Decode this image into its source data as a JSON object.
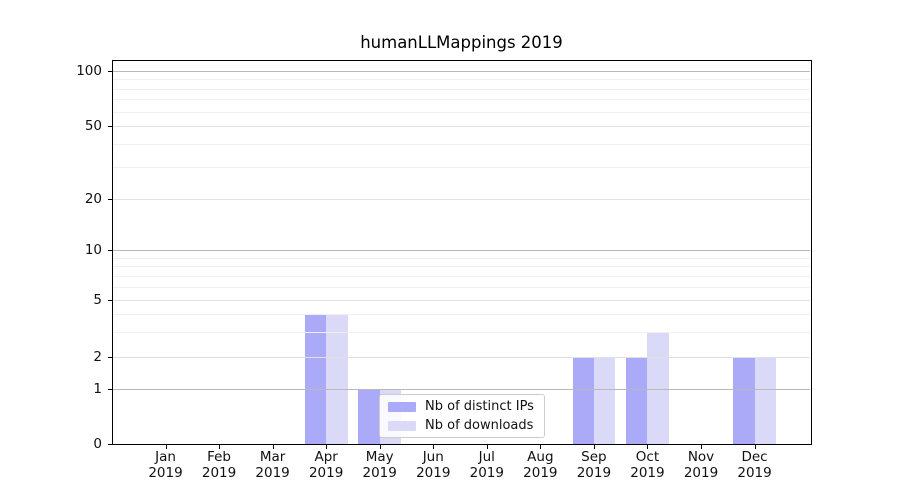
{
  "figure": {
    "background": "#ffffff"
  },
  "chart_data": {
    "type": "bar",
    "title": "humanLLMappings 2019",
    "categories": [
      "Jan",
      "Feb",
      "Mar",
      "Apr",
      "May",
      "Jun",
      "Jul",
      "Aug",
      "Sep",
      "Oct",
      "Nov",
      "Dec"
    ],
    "x_year_label": "2019",
    "y_scale": "symlog",
    "ylim": [
      0,
      115
    ],
    "y_ticks": [
      0,
      1,
      2,
      5,
      10,
      20,
      50,
      100
    ],
    "y_minor_gridlines": [
      3,
      4,
      6,
      7,
      8,
      9,
      30,
      40,
      60,
      70,
      80,
      90
    ],
    "grid": "horizontal major+minor, drawn above bars",
    "legend_position": "lower center",
    "series": [
      {
        "name": "Nb of distinct IPs",
        "color": "#aaaaf8",
        "values": [
          0,
          0,
          0,
          4,
          1,
          0,
          0,
          0,
          2,
          2,
          0,
          2
        ]
      },
      {
        "name": "Nb of downloads",
        "color": "#dadaf8",
        "values": [
          0,
          0,
          0,
          4,
          1,
          0,
          0,
          0,
          2,
          3,
          0,
          2
        ]
      }
    ]
  }
}
